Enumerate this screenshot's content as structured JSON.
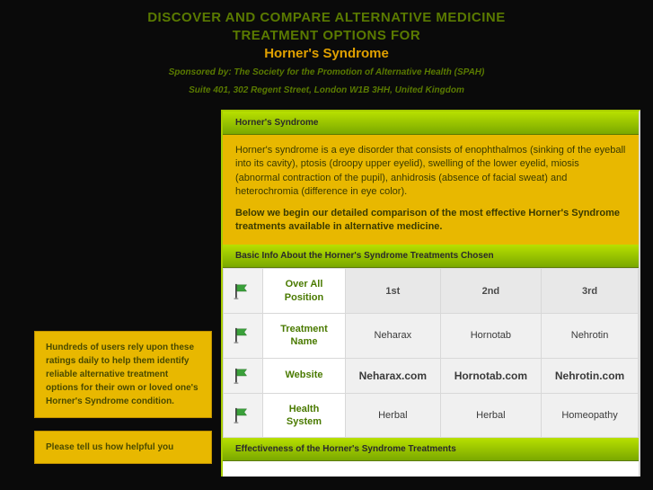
{
  "header": {
    "title_line1": "DISCOVER AND COMPARE  ALTERNATIVE MEDICINE",
    "title_line2": "TREATMENT OPTIONS FOR",
    "subtitle": "Horner's Syndrome",
    "sponsor_l1": "Sponsored by: The Society for the Promotion of Alternative Health (SPAH)",
    "sponsor_l2": "Suite 401, 302 Regent Street, London W1B 3HH, United Kingdom"
  },
  "sidebar": {
    "box1": "Hundreds of users rely upon these ratings daily to help them identify reliable alternative treatment options for their own or loved one's Horner's Syndrome condition.",
    "box2": "Please tell us how helpful you"
  },
  "content": {
    "band_condition": "Horner's Syndrome",
    "description": "Horner's syndrome is a eye disorder that consists of enophthalmos (sinking of the eyeball into its cavity), ptosis (droopy upper eyelid), swelling of the lower eyelid, miosis (abnormal contraction of the pupil), anhidrosis (absence of facial sweat) and heterochromia (difference in eye color).",
    "lead": "Below we begin our detailed comparison of the most effective Horner's Syndrome treatments available in alternative medicine.",
    "band_basic": "Basic Info About the Horner's Syndrome Treatments Chosen",
    "band_effect": "Effectiveness of the Horner's Syndrome Treatments"
  },
  "table": {
    "rows": [
      {
        "label": "Over All Position",
        "cells": [
          "1st",
          "2nd",
          "3rd"
        ],
        "head": true
      },
      {
        "label": "Treatment Name",
        "cells": [
          "Neharax",
          "Hornotab",
          "Nehrotin"
        ],
        "head": false
      },
      {
        "label": "Website",
        "cells": [
          "Neharax.com",
          "Hornotab.com",
          "Nehrotin.com"
        ],
        "head": false,
        "bold": true
      },
      {
        "label": "Health System",
        "cells": [
          "Herbal",
          "Herbal",
          "Homeopathy"
        ],
        "head": false
      }
    ]
  },
  "colors": {
    "green_dark": "#5a7a00",
    "amber": "#e8b800",
    "lime_top": "#b8e000",
    "lime_bot": "#7aa800"
  }
}
